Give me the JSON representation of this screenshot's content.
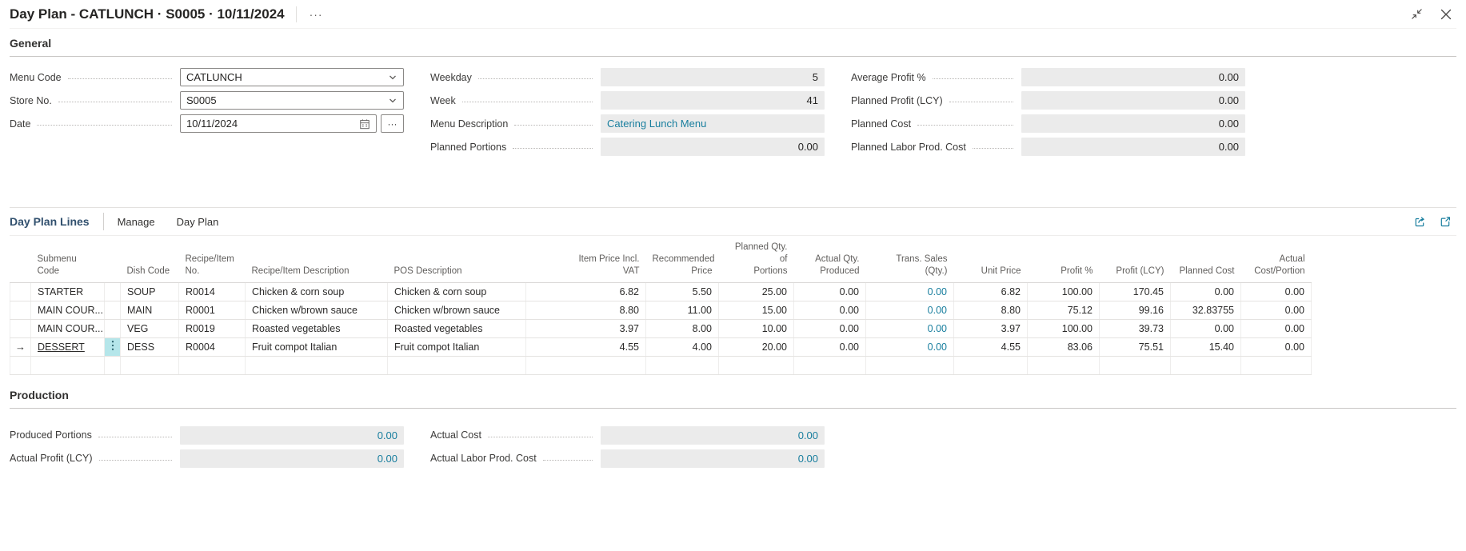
{
  "colors": {
    "link_teal": "#187e9e",
    "selection_cyan": "#b5e6ea",
    "readonly_bg": "#ebebeb"
  },
  "window": {
    "title": "Day Plan - CATLUNCH · S0005 · 10/11/2024",
    "more_options": "···"
  },
  "general": {
    "heading": "General",
    "fields": {
      "menu_code": {
        "label": "Menu Code",
        "value": "CATLUNCH"
      },
      "store_no": {
        "label": "Store No.",
        "value": "S0005"
      },
      "date": {
        "label": "Date",
        "value": "10/11/2024",
        "assist_label": "···"
      },
      "weekday": {
        "label": "Weekday",
        "value": "5"
      },
      "week": {
        "label": "Week",
        "value": "41"
      },
      "menu_description": {
        "label": "Menu Description",
        "value": "Catering Lunch Menu"
      },
      "planned_portions": {
        "label": "Planned Portions",
        "value": "0.00"
      },
      "average_profit_pct": {
        "label": "Average Profit %",
        "value": "0.00"
      },
      "planned_profit_lcy": {
        "label": "Planned Profit (LCY)",
        "value": "0.00"
      },
      "planned_cost": {
        "label": "Planned Cost",
        "value": "0.00"
      },
      "planned_labor_prod_cost": {
        "label": "Planned Labor Prod. Cost",
        "value": "0.00"
      }
    }
  },
  "lines": {
    "heading": "Day Plan Lines",
    "menu": {
      "manage": "Manage",
      "day_plan": "Day Plan"
    },
    "columns": [
      {
        "key": "submenu",
        "label": "Submenu\nCode",
        "align": "left"
      },
      {
        "key": "dish",
        "label": "Dish Code",
        "align": "left"
      },
      {
        "key": "recipe_no",
        "label": "Recipe/Item No.",
        "align": "left"
      },
      {
        "key": "recipe_desc",
        "label": "Recipe/Item Description",
        "align": "left"
      },
      {
        "key": "pos_desc",
        "label": "POS Description",
        "align": "left"
      },
      {
        "key": "item_price",
        "label": "Item Price Incl.\nVAT",
        "align": "right"
      },
      {
        "key": "rec_price",
        "label": "Recommended\nPrice",
        "align": "right"
      },
      {
        "key": "planned_qty",
        "label": "Planned Qty. of\nPortions",
        "align": "right"
      },
      {
        "key": "actual_qty",
        "label": "Actual Qty.\nProduced",
        "align": "right"
      },
      {
        "key": "trans_sales",
        "label": "Trans. Sales (Qty.)",
        "align": "right",
        "link": true
      },
      {
        "key": "unit_price",
        "label": "Unit Price",
        "align": "right"
      },
      {
        "key": "profit_pct",
        "label": "Profit %",
        "align": "right"
      },
      {
        "key": "profit_lcy",
        "label": "Profit (LCY)",
        "align": "right"
      },
      {
        "key": "planned_cost",
        "label": "Planned Cost",
        "align": "right"
      },
      {
        "key": "actual_cost",
        "label": "Actual\nCost/Portion",
        "align": "right"
      }
    ],
    "rows": [
      {
        "active": false,
        "submenu": "STARTER",
        "dish": "SOUP",
        "recipe_no": "R0014",
        "recipe_desc": "Chicken & corn soup",
        "pos_desc": "Chicken & corn soup",
        "item_price": "6.82",
        "rec_price": "5.50",
        "planned_qty": "25.00",
        "actual_qty": "0.00",
        "trans_sales": "0.00",
        "unit_price": "6.82",
        "profit_pct": "100.00",
        "profit_lcy": "170.45",
        "planned_cost": "0.00",
        "actual_cost": "0.00"
      },
      {
        "active": false,
        "submenu": "MAIN COUR...",
        "dish": "MAIN",
        "recipe_no": "R0001",
        "recipe_desc": "Chicken w/brown sauce",
        "pos_desc": "Chicken w/brown sauce",
        "item_price": "8.80",
        "rec_price": "11.00",
        "planned_qty": "15.00",
        "actual_qty": "0.00",
        "trans_sales": "0.00",
        "unit_price": "8.80",
        "profit_pct": "75.12",
        "profit_lcy": "99.16",
        "planned_cost": "32.83755",
        "actual_cost": "0.00"
      },
      {
        "active": false,
        "submenu": "MAIN COUR...",
        "dish": "VEG",
        "recipe_no": "R0019",
        "recipe_desc": "Roasted vegetables",
        "pos_desc": "Roasted vegetables",
        "item_price": "3.97",
        "rec_price": "8.00",
        "planned_qty": "10.00",
        "actual_qty": "0.00",
        "trans_sales": "0.00",
        "unit_price": "3.97",
        "profit_pct": "100.00",
        "profit_lcy": "39.73",
        "planned_cost": "0.00",
        "actual_cost": "0.00"
      },
      {
        "active": true,
        "submenu": "DESSERT",
        "dish": "DESS",
        "recipe_no": "R0004",
        "recipe_desc": "Fruit compot Italian",
        "pos_desc": "Fruit compot Italian",
        "item_price": "4.55",
        "rec_price": "4.00",
        "planned_qty": "20.00",
        "actual_qty": "0.00",
        "trans_sales": "0.00",
        "unit_price": "4.55",
        "profit_pct": "83.06",
        "profit_lcy": "75.51",
        "planned_cost": "15.40",
        "actual_cost": "0.00"
      },
      {
        "active": false,
        "submenu": "",
        "dish": "",
        "recipe_no": "",
        "recipe_desc": "",
        "pos_desc": "",
        "item_price": "",
        "rec_price": "",
        "planned_qty": "",
        "actual_qty": "",
        "trans_sales": "",
        "unit_price": "",
        "profit_pct": "",
        "profit_lcy": "",
        "planned_cost": "",
        "actual_cost": ""
      }
    ]
  },
  "production": {
    "heading": "Production",
    "fields": {
      "produced_portions": {
        "label": "Produced Portions",
        "value": "0.00"
      },
      "actual_profit_lcy": {
        "label": "Actual Profit (LCY)",
        "value": "0.00"
      },
      "actual_cost": {
        "label": "Actual Cost",
        "value": "0.00"
      },
      "actual_labor_prod_cost": {
        "label": "Actual Labor Prod. Cost",
        "value": "0.00"
      }
    }
  }
}
